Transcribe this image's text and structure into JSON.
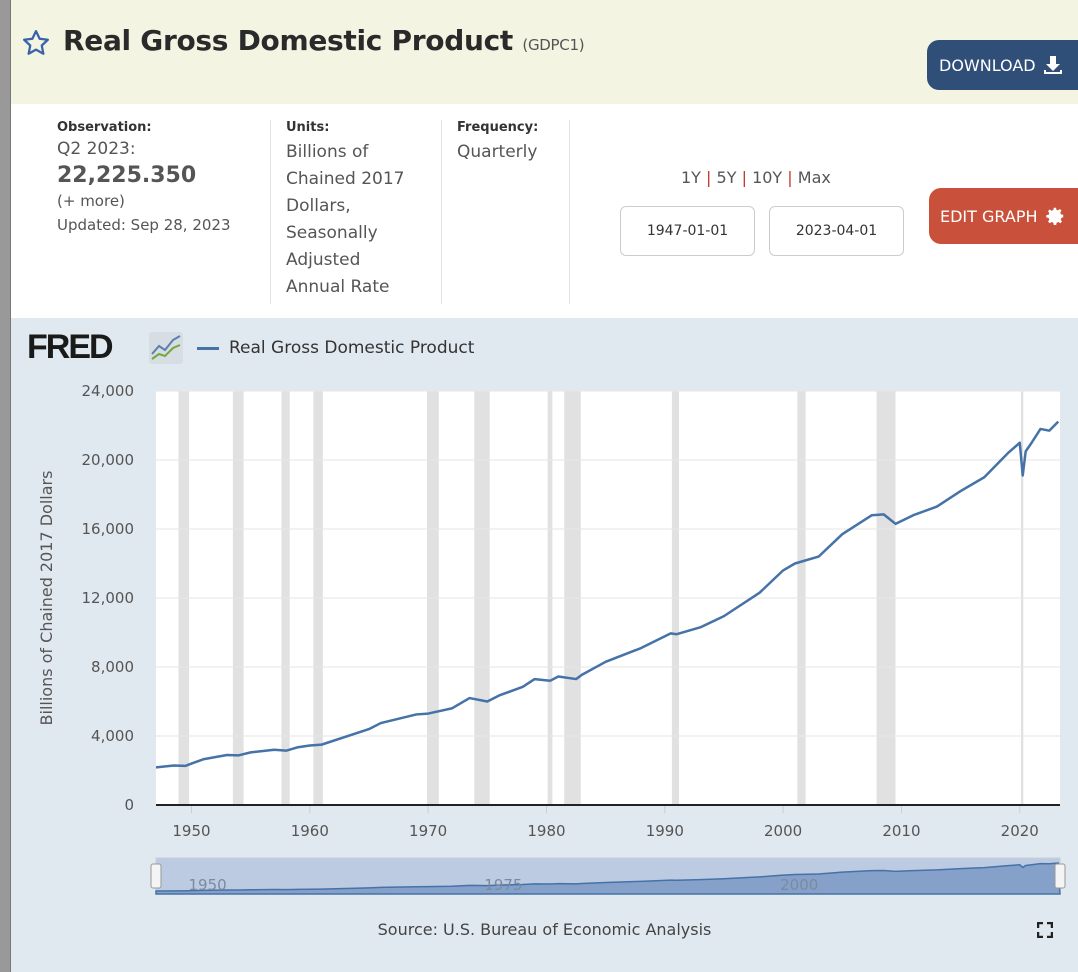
{
  "header": {
    "title": "Real Gross Domestic Product",
    "series_id": "(GDPC1)",
    "download_label": "DOWNLOAD"
  },
  "info": {
    "observation": {
      "label": "Observation:",
      "period": "Q2 2023:",
      "value": "22,225.350",
      "more": "(+ more)",
      "updated": "Updated: Sep 28, 2023"
    },
    "units": {
      "label": "Units:",
      "lines": [
        "Billions of",
        "Chained 2017",
        "Dollars,",
        "Seasonally",
        "Adjusted",
        "Annual Rate"
      ]
    },
    "frequency": {
      "label": "Frequency:",
      "value": "Quarterly"
    },
    "ranges": [
      "1Y",
      "5Y",
      "10Y",
      "Max"
    ],
    "start_date": "1947-01-01",
    "end_date": "2023-04-01",
    "edit_label": "EDIT GRAPH"
  },
  "chart": {
    "logo": "FRED",
    "legend": "Real Gross Domestic Product",
    "source": "Source: U.S. Bureau of Economic Analysis",
    "navigator_labels": [
      "1950",
      "1975",
      "2000"
    ],
    "line_color": "#4572a7"
  },
  "chart_data": {
    "type": "line",
    "ylabel": "Billions of Chained 2017 Dollars",
    "xlim": [
      1947.0,
      2023.4
    ],
    "ylim": [
      0,
      24000
    ],
    "yticks": [
      0,
      4000,
      8000,
      12000,
      16000,
      20000,
      24000
    ],
    "ytick_labels": [
      "0",
      "4,000",
      "8,000",
      "12,000",
      "16,000",
      "20,000",
      "24,000"
    ],
    "xticks": [
      1950,
      1960,
      1970,
      1980,
      1990,
      2000,
      2010,
      2020
    ],
    "recessions": [
      [
        1948.9,
        1949.8
      ],
      [
        1953.5,
        1954.4
      ],
      [
        1957.6,
        1958.3
      ],
      [
        1960.3,
        1961.1
      ],
      [
        1969.9,
        1970.9
      ],
      [
        1973.9,
        1975.2
      ],
      [
        1980.1,
        1980.5
      ],
      [
        1981.5,
        1982.9
      ],
      [
        1990.6,
        1991.2
      ],
      [
        2001.2,
        2001.9
      ],
      [
        2007.9,
        2009.5
      ],
      [
        2020.1,
        2020.3
      ]
    ],
    "series": [
      {
        "name": "Real Gross Domestic Product",
        "x": [
          1947,
          1948.5,
          1949.5,
          1950,
          1951,
          1953,
          1954,
          1955,
          1957,
          1958,
          1959,
          1960,
          1961,
          1965,
          1966,
          1969,
          1970,
          1972,
          1973.5,
          1975,
          1976,
          1978,
          1979,
          1980.3,
          1981,
          1982.5,
          1983,
          1985,
          1988,
          1990.5,
          1991,
          1993,
          1995,
          1998,
          2000,
          2001,
          2003,
          2005,
          2007.5,
          2008.5,
          2009.5,
          2011,
          2013,
          2015,
          2017,
          2019,
          2020.0,
          2020.25,
          2020.5,
          2021,
          2021.75,
          2022.5,
          2023.25
        ],
        "y": [
          2180,
          2290,
          2270,
          2400,
          2650,
          2900,
          2880,
          3050,
          3200,
          3150,
          3350,
          3450,
          3500,
          4400,
          4750,
          5250,
          5300,
          5600,
          6200,
          6000,
          6350,
          6850,
          7300,
          7200,
          7450,
          7300,
          7550,
          8300,
          9100,
          9950,
          9900,
          10300,
          10950,
          12300,
          13600,
          14000,
          14400,
          15700,
          16800,
          16850,
          16300,
          16800,
          17300,
          18200,
          19000,
          20400,
          21000,
          19100,
          20500,
          21000,
          21800,
          21700,
          22225
        ]
      }
    ]
  }
}
